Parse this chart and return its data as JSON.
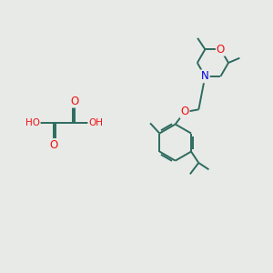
{
  "background_color": "#e8eae8",
  "bond_color": "#2d6b5e",
  "atom_colors": {
    "O": "#ee1111",
    "N": "#0000dd",
    "C": "#2d6b5e"
  },
  "line_width": 1.4,
  "font_size": 7.5,
  "figsize": [
    3.0,
    3.0
  ],
  "dpi": 100
}
